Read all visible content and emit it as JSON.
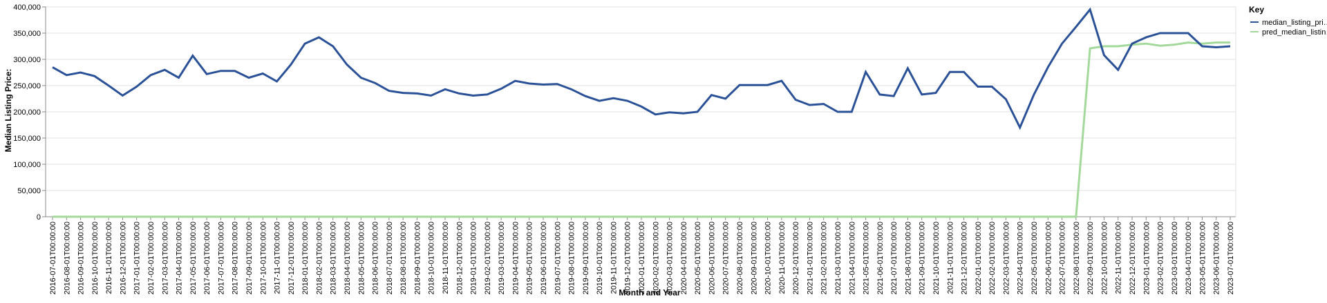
{
  "chart_data": {
    "type": "line",
    "x_label": "Month and Year",
    "y_label": "Median Listing Price:",
    "legend_title": "Key",
    "legend": "right",
    "grid": true,
    "categories": [
      "2016-07-01T00:00:00",
      "2016-08-01T00:00:00",
      "2016-09-01T00:00:00",
      "2016-10-01T00:00:00",
      "2016-11-01T00:00:00",
      "2016-12-01T00:00:00",
      "2017-01-01T00:00:00",
      "2017-02-01T00:00:00",
      "2017-03-01T00:00:00",
      "2017-04-01T00:00:00",
      "2017-05-01T00:00:00",
      "2017-06-01T00:00:00",
      "2017-07-01T00:00:00",
      "2017-08-01T00:00:00",
      "2017-09-01T00:00:00",
      "2017-10-01T00:00:00",
      "2017-11-01T00:00:00",
      "2017-12-01T00:00:00",
      "2018-01-01T00:00:00",
      "2018-02-01T00:00:00",
      "2018-03-01T00:00:00",
      "2018-04-01T00:00:00",
      "2018-05-01T00:00:00",
      "2018-06-01T00:00:00",
      "2018-07-01T00:00:00",
      "2018-08-01T00:00:00",
      "2018-09-01T00:00:00",
      "2018-10-01T00:00:00",
      "2018-11-01T00:00:00",
      "2018-12-01T00:00:00",
      "2019-01-01T00:00:00",
      "2019-02-01T00:00:00",
      "2019-03-01T00:00:00",
      "2019-04-01T00:00:00",
      "2019-05-01T00:00:00",
      "2019-06-01T00:00:00",
      "2019-07-01T00:00:00",
      "2019-08-01T00:00:00",
      "2019-09-01T00:00:00",
      "2019-10-01T00:00:00",
      "2019-11-01T00:00:00",
      "2019-12-01T00:00:00",
      "2020-01-01T00:00:00",
      "2020-02-01T00:00:00",
      "2020-03-01T00:00:00",
      "2020-04-01T00:00:00",
      "2020-05-01T00:00:00",
      "2020-06-01T00:00:00",
      "2020-07-01T00:00:00",
      "2020-08-01T00:00:00",
      "2020-09-01T00:00:00",
      "2020-10-01T00:00:00",
      "2020-11-01T00:00:00",
      "2020-12-01T00:00:00",
      "2021-01-01T00:00:00",
      "2021-02-01T00:00:00",
      "2021-03-01T00:00:00",
      "2021-04-01T00:00:00",
      "2021-05-01T00:00:00",
      "2021-06-01T00:00:00",
      "2021-07-01T00:00:00",
      "2021-08-01T00:00:00",
      "2021-09-01T00:00:00",
      "2021-10-01T00:00:00",
      "2021-11-01T00:00:00",
      "2021-12-01T00:00:00",
      "2022-01-01T00:00:00",
      "2022-02-01T00:00:00",
      "2022-03-01T00:00:00",
      "2022-04-01T00:00:00",
      "2022-05-01T00:00:00",
      "2022-06-01T00:00:00",
      "2022-07-01T00:00:00",
      "2022-08-01T00:00:00",
      "2022-09-01T00:00:00",
      "2022-10-01T00:00:00",
      "2022-11-01T00:00:00",
      "2022-12-01T00:00:00",
      "2023-01-01T00:00:00",
      "2023-02-01T00:00:00",
      "2023-03-01T00:00:00",
      "2023-04-01T00:00:00",
      "2023-05-01T00:00:00",
      "2023-06-01T00:00:00",
      "2023-07-01T00:00:00"
    ],
    "series": [
      {
        "name": "median_listing_pri…",
        "color": "#2b5197",
        "values": [
          285000,
          270000,
          275000,
          268000,
          250000,
          231000,
          248000,
          270000,
          280000,
          265000,
          307000,
          272000,
          278000,
          278000,
          265000,
          273000,
          258000,
          290000,
          330000,
          342000,
          325000,
          290000,
          265000,
          255000,
          240000,
          236000,
          235000,
          231000,
          243000,
          235000,
          231000,
          233000,
          244000,
          259000,
          254000,
          252000,
          253000,
          243000,
          230000,
          221000,
          226000,
          221000,
          210000,
          195000,
          199000,
          197000,
          200000,
          232000,
          225000,
          251000,
          251000,
          251000,
          259000,
          223000,
          213000,
          215000,
          200000,
          200000,
          276000,
          233000,
          230000,
          283000,
          233000,
          236000,
          276000,
          276000,
          248000,
          248000,
          224000,
          170000,
          233000,
          285000,
          330000,
          362000,
          395000,
          308000,
          280000,
          330000,
          342000,
          350000,
          350000,
          350000,
          325000,
          323000,
          325000
        ]
      },
      {
        "name": "pred_median_listin…",
        "color": "#a3d99b",
        "values": [
          0,
          0,
          0,
          0,
          0,
          0,
          0,
          0,
          0,
          0,
          0,
          0,
          0,
          0,
          0,
          0,
          0,
          0,
          0,
          0,
          0,
          0,
          0,
          0,
          0,
          0,
          0,
          0,
          0,
          0,
          0,
          0,
          0,
          0,
          0,
          0,
          0,
          0,
          0,
          0,
          0,
          0,
          0,
          0,
          0,
          0,
          0,
          0,
          0,
          0,
          0,
          0,
          0,
          0,
          0,
          0,
          0,
          0,
          0,
          0,
          0,
          0,
          0,
          0,
          0,
          0,
          0,
          0,
          0,
          0,
          0,
          0,
          0,
          0,
          321000,
          325000,
          325000,
          328000,
          330000,
          326000,
          328000,
          332000,
          330000,
          332000,
          332000
        ]
      }
    ],
    "ylim": [
      0,
      400000
    ],
    "yticks": [
      0,
      {
        "value": 50000,
        "label": "50,000"
      },
      {
        "value": 100000,
        "label": "100,000"
      },
      {
        "value": 150000,
        "label": "150,000"
      },
      {
        "value": 200000,
        "label": "200,000"
      },
      {
        "value": 250000,
        "label": "250,000"
      },
      {
        "value": 300000,
        "label": "300,000"
      },
      {
        "value": 350000,
        "label": "350,000"
      },
      {
        "value": 400000,
        "label": "400,000"
      }
    ]
  }
}
